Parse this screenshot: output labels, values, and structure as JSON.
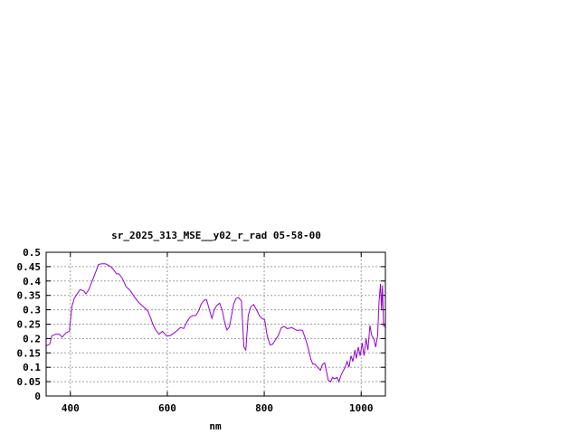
{
  "chart_data": {
    "type": "line",
    "title": "sr_2025_313_MSE__y02_r_rad 05-58-00",
    "xlabel": "nm",
    "ylabel": "",
    "xlim": [
      350,
      1050
    ],
    "ylim": [
      0,
      0.5
    ],
    "grid": true,
    "legend": "none",
    "x_ticks": [
      400,
      600,
      800,
      1000
    ],
    "x_tick_labels": [
      "400",
      "600",
      "800",
      "1000"
    ],
    "y_ticks": [
      0,
      0.05,
      0.1,
      0.15,
      0.2,
      0.25,
      0.3,
      0.35,
      0.4,
      0.45,
      0.5
    ],
    "y_tick_labels": [
      "0",
      "0.05",
      "0.1",
      "0.15",
      "0.2",
      "0.25",
      "0.3",
      "0.35",
      "0.4",
      "0.45",
      "0.5"
    ],
    "series": [
      {
        "color": "#9400d3",
        "x": [
          350,
          357,
          362,
          370,
          377,
          383,
          391,
          398,
          403,
          408,
          412,
          420,
          428,
          432,
          438,
          445,
          452,
          458,
          465,
          472,
          478,
          483,
          489,
          495,
          500,
          507,
          515,
          523,
          532,
          541,
          551,
          560,
          566,
          570,
          576,
          583,
          590,
          598,
          606,
          613,
          620,
          627,
          634,
          640,
          647,
          653,
          659,
          665,
          670,
          676,
          681,
          686,
          692,
          697,
          702,
          708,
          713,
          718,
          723,
          728,
          732,
          737,
          742,
          747,
          753,
          758,
          762,
          767,
          772,
          778,
          784,
          790,
          795,
          801,
          806,
          812,
          817,
          823,
          829,
          835,
          841,
          847,
          852,
          857,
          863,
          868,
          874,
          879,
          885,
          890,
          896,
          900,
          905,
          910,
          916,
          920,
          925,
          928,
          932,
          937,
          941,
          945,
          950,
          954,
          958,
          962,
          967,
          971,
          975,
          979,
          983,
          987,
          990,
          994,
          998,
          1002,
          1006,
          1010,
          1014,
          1018,
          1022,
          1026,
          1030,
          1034,
          1037,
          1040,
          1042,
          1044,
          1046,
          1048,
          1050
        ],
        "y": [
          0.175,
          0.18,
          0.21,
          0.215,
          0.215,
          0.205,
          0.22,
          0.225,
          0.31,
          0.34,
          0.35,
          0.37,
          0.365,
          0.355,
          0.37,
          0.4,
          0.43,
          0.458,
          0.46,
          0.46,
          0.455,
          0.45,
          0.44,
          0.425,
          0.425,
          0.41,
          0.38,
          0.368,
          0.345,
          0.325,
          0.31,
          0.295,
          0.27,
          0.25,
          0.23,
          0.215,
          0.225,
          0.21,
          0.21,
          0.218,
          0.227,
          0.238,
          0.235,
          0.257,
          0.275,
          0.28,
          0.28,
          0.298,
          0.32,
          0.333,
          0.335,
          0.305,
          0.27,
          0.3,
          0.315,
          0.323,
          0.3,
          0.26,
          0.23,
          0.24,
          0.275,
          0.32,
          0.34,
          0.342,
          0.33,
          0.17,
          0.16,
          0.28,
          0.31,
          0.318,
          0.3,
          0.28,
          0.27,
          0.265,
          0.21,
          0.178,
          0.18,
          0.195,
          0.21,
          0.237,
          0.242,
          0.235,
          0.236,
          0.238,
          0.232,
          0.228,
          0.23,
          0.228,
          0.2,
          0.17,
          0.13,
          0.112,
          0.11,
          0.1,
          0.09,
          0.11,
          0.115,
          0.09,
          0.055,
          0.05,
          0.065,
          0.06,
          0.065,
          0.05,
          0.07,
          0.085,
          0.1,
          0.12,
          0.1,
          0.14,
          0.12,
          0.16,
          0.13,
          0.17,
          0.14,
          0.185,
          0.14,
          0.2,
          0.16,
          0.245,
          0.21,
          0.2,
          0.17,
          0.21,
          0.33,
          0.39,
          0.3,
          0.385,
          0.245,
          0.25,
          0.235
        ]
      }
    ]
  }
}
